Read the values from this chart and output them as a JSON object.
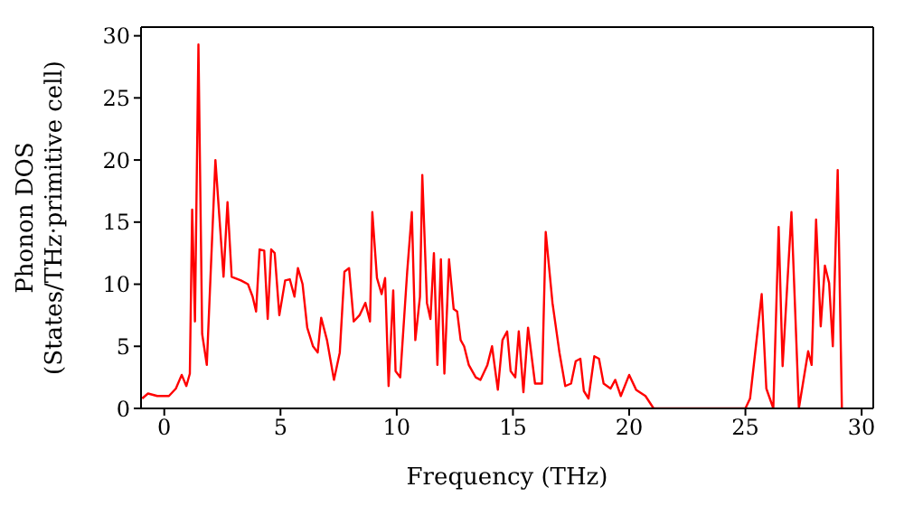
{
  "chart_data": {
    "type": "line",
    "xlabel": "Frequency (THz)",
    "ylabel": "Phonon DOS\n(States/THz·primitive cell)",
    "xlim": [
      -1,
      30.5
    ],
    "ylim": [
      0,
      30.7
    ],
    "xticks": [
      0,
      5,
      10,
      15,
      20,
      25,
      30
    ],
    "yticks": [
      0,
      5,
      10,
      15,
      20,
      25,
      30
    ],
    "legend": false,
    "marker": "none",
    "line_style": "solid",
    "series": [
      {
        "color": "#ff0000",
        "x": [
          -0.95,
          -0.7,
          -0.3,
          0.2,
          0.5,
          0.75,
          0.95,
          1.1,
          1.2,
          1.32,
          1.47,
          1.63,
          1.83,
          2.2,
          2.55,
          2.72,
          2.9,
          3.3,
          3.6,
          3.8,
          3.95,
          4.1,
          4.3,
          4.45,
          4.6,
          4.75,
          4.95,
          5.2,
          5.4,
          5.6,
          5.75,
          5.95,
          6.15,
          6.4,
          6.6,
          6.75,
          7.0,
          7.3,
          7.55,
          7.75,
          7.95,
          8.15,
          8.4,
          8.65,
          8.85,
          8.95,
          9.15,
          9.35,
          9.5,
          9.65,
          9.85,
          9.95,
          10.15,
          10.45,
          10.65,
          10.8,
          11.0,
          11.1,
          11.3,
          11.45,
          11.6,
          11.75,
          11.9,
          12.05,
          12.25,
          12.45,
          12.6,
          12.75,
          12.9,
          13.1,
          13.4,
          13.6,
          13.9,
          14.1,
          14.35,
          14.55,
          14.75,
          14.9,
          15.1,
          15.25,
          15.45,
          15.65,
          15.95,
          16.25,
          16.41,
          16.7,
          17.0,
          17.25,
          17.5,
          17.7,
          17.9,
          18.05,
          18.25,
          18.5,
          18.7,
          18.9,
          19.2,
          19.4,
          19.64,
          20.0,
          20.3,
          20.7,
          21.05,
          25.0,
          25.2,
          25.7,
          25.9,
          26.2,
          26.43,
          26.6,
          26.98,
          27.3,
          27.7,
          27.85,
          28.04,
          28.24,
          28.42,
          28.6,
          28.76,
          28.97,
          29.15
        ],
        "values": [
          0.8,
          1.2,
          1.0,
          1.0,
          1.6,
          2.7,
          1.8,
          2.8,
          16,
          7,
          29.3,
          6,
          3.5,
          20,
          10.6,
          16.6,
          10.6,
          10.3,
          10.0,
          9.0,
          7.8,
          12.8,
          12.7,
          7.2,
          12.8,
          12.5,
          7.5,
          10.3,
          10.4,
          9.0,
          11.3,
          10,
          6.5,
          5.0,
          4.5,
          7.3,
          5.5,
          2.3,
          4.5,
          11.0,
          11.3,
          7.0,
          7.5,
          8.5,
          7.0,
          15.8,
          10.5,
          9.2,
          10.5,
          1.8,
          9.5,
          3.0,
          2.5,
          11,
          15.8,
          5.5,
          9,
          18.8,
          8.5,
          7.2,
          12.5,
          3.5,
          12,
          2.8,
          12,
          8,
          7.8,
          5.5,
          5,
          3.5,
          2.5,
          2.3,
          3.5,
          5.0,
          1.5,
          5.5,
          6.2,
          3,
          2.5,
          6.2,
          1.3,
          6.5,
          2,
          2,
          14.2,
          8.5,
          4.5,
          1.8,
          2,
          3.8,
          4.0,
          1.4,
          0.8,
          4.2,
          4.0,
          2,
          1.6,
          2.3,
          1.0,
          2.7,
          1.5,
          1.0,
          0,
          0,
          0.8,
          9.2,
          1.6,
          0,
          14.6,
          3.4,
          15.8,
          0,
          4.6,
          3.5,
          15.2,
          6.6,
          11.5,
          10.1,
          5.0,
          19.2,
          0
        ]
      }
    ]
  }
}
